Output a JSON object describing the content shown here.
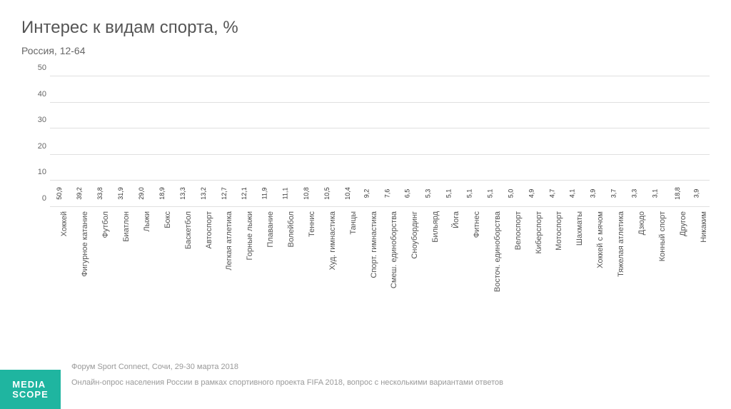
{
  "title": "Интерес к видам спорта, %",
  "subtitle": "Россия, 12-64",
  "chart": {
    "type": "bar",
    "ylim": [
      0,
      52
    ],
    "yticks": [
      0,
      10,
      20,
      30,
      40,
      50
    ],
    "grid_color": "#e0e0e0",
    "background_color": "#ffffff",
    "value_fontsize": 9,
    "xlabel_fontsize": 11,
    "ytick_fontsize": 11,
    "bar_width": 0.75,
    "colors": {
      "primary": "#5b4a9f",
      "secondary": "#2fb5a0"
    },
    "bars": [
      {
        "label": "Хоккей",
        "value": 50.9,
        "colorKey": "primary"
      },
      {
        "label": "Фигурное катание",
        "value": 39.2,
        "colorKey": "primary"
      },
      {
        "label": "Футбол",
        "value": 33.8,
        "colorKey": "primary"
      },
      {
        "label": "Биатлон",
        "value": 31.9,
        "colorKey": "primary"
      },
      {
        "label": "Лыжи",
        "value": 29.0,
        "colorKey": "primary"
      },
      {
        "label": "Бокс",
        "value": 18.9,
        "colorKey": "secondary"
      },
      {
        "label": "Баскетбол",
        "value": 13.3,
        "colorKey": "secondary"
      },
      {
        "label": "Автоспорт",
        "value": 13.2,
        "colorKey": "secondary"
      },
      {
        "label": "Легкая атлетика",
        "value": 12.7,
        "colorKey": "secondary"
      },
      {
        "label": "Горные лыжи",
        "value": 12.1,
        "colorKey": "secondary"
      },
      {
        "label": "Плавание",
        "value": 11.9,
        "colorKey": "secondary"
      },
      {
        "label": "Волейбол",
        "value": 11.1,
        "colorKey": "secondary"
      },
      {
        "label": "Теннис",
        "value": 10.8,
        "colorKey": "secondary"
      },
      {
        "label": "Худ. гимнастика",
        "value": 10.5,
        "colorKey": "secondary"
      },
      {
        "label": "Танцы",
        "value": 10.4,
        "colorKey": "secondary"
      },
      {
        "label": "Спорт. гимнастика",
        "value": 9.2,
        "colorKey": "secondary"
      },
      {
        "label": "Смеш. единоборства",
        "value": 7.6,
        "colorKey": "secondary"
      },
      {
        "label": "Сноубординг",
        "value": 6.5,
        "colorKey": "secondary"
      },
      {
        "label": "Бильярд",
        "value": 5.3,
        "colorKey": "secondary"
      },
      {
        "label": "Йога",
        "value": 5.1,
        "colorKey": "secondary"
      },
      {
        "label": "Фитнес",
        "value": 5.1,
        "colorKey": "secondary"
      },
      {
        "label": "Восточ. единоборства",
        "value": 5.1,
        "colorKey": "secondary"
      },
      {
        "label": "Велоспорт",
        "value": 5.0,
        "colorKey": "secondary"
      },
      {
        "label": "Киберспорт",
        "value": 4.9,
        "colorKey": "secondary"
      },
      {
        "label": "Мотоспорт",
        "value": 4.7,
        "colorKey": "secondary"
      },
      {
        "label": "Шахматы",
        "value": 4.1,
        "colorKey": "secondary"
      },
      {
        "label": "Хоккей с мячом",
        "value": 3.9,
        "colorKey": "secondary"
      },
      {
        "label": "Тяжелая атлетика",
        "value": 3.7,
        "colorKey": "secondary"
      },
      {
        "label": "Дзюдо",
        "value": 3.3,
        "colorKey": "secondary"
      },
      {
        "label": "Конный спорт",
        "value": 3.1,
        "colorKey": "secondary"
      },
      {
        "label": "Другое",
        "value": 18.8,
        "colorKey": "secondary"
      },
      {
        "label": "Никаким",
        "value": 3.9,
        "colorKey": "secondary"
      }
    ]
  },
  "footer": {
    "logo_line1": "MEDIA",
    "logo_line2": "SCOPE",
    "logo_bg": "#1fb5a0",
    "line1": "Форум Sport Connect, Сочи, 29-30 марта 2018",
    "line2": "Онлайн-опрос населения России в рамках спортивного проекта FIFA 2018, вопрос с несколькими вариантами ответов"
  }
}
